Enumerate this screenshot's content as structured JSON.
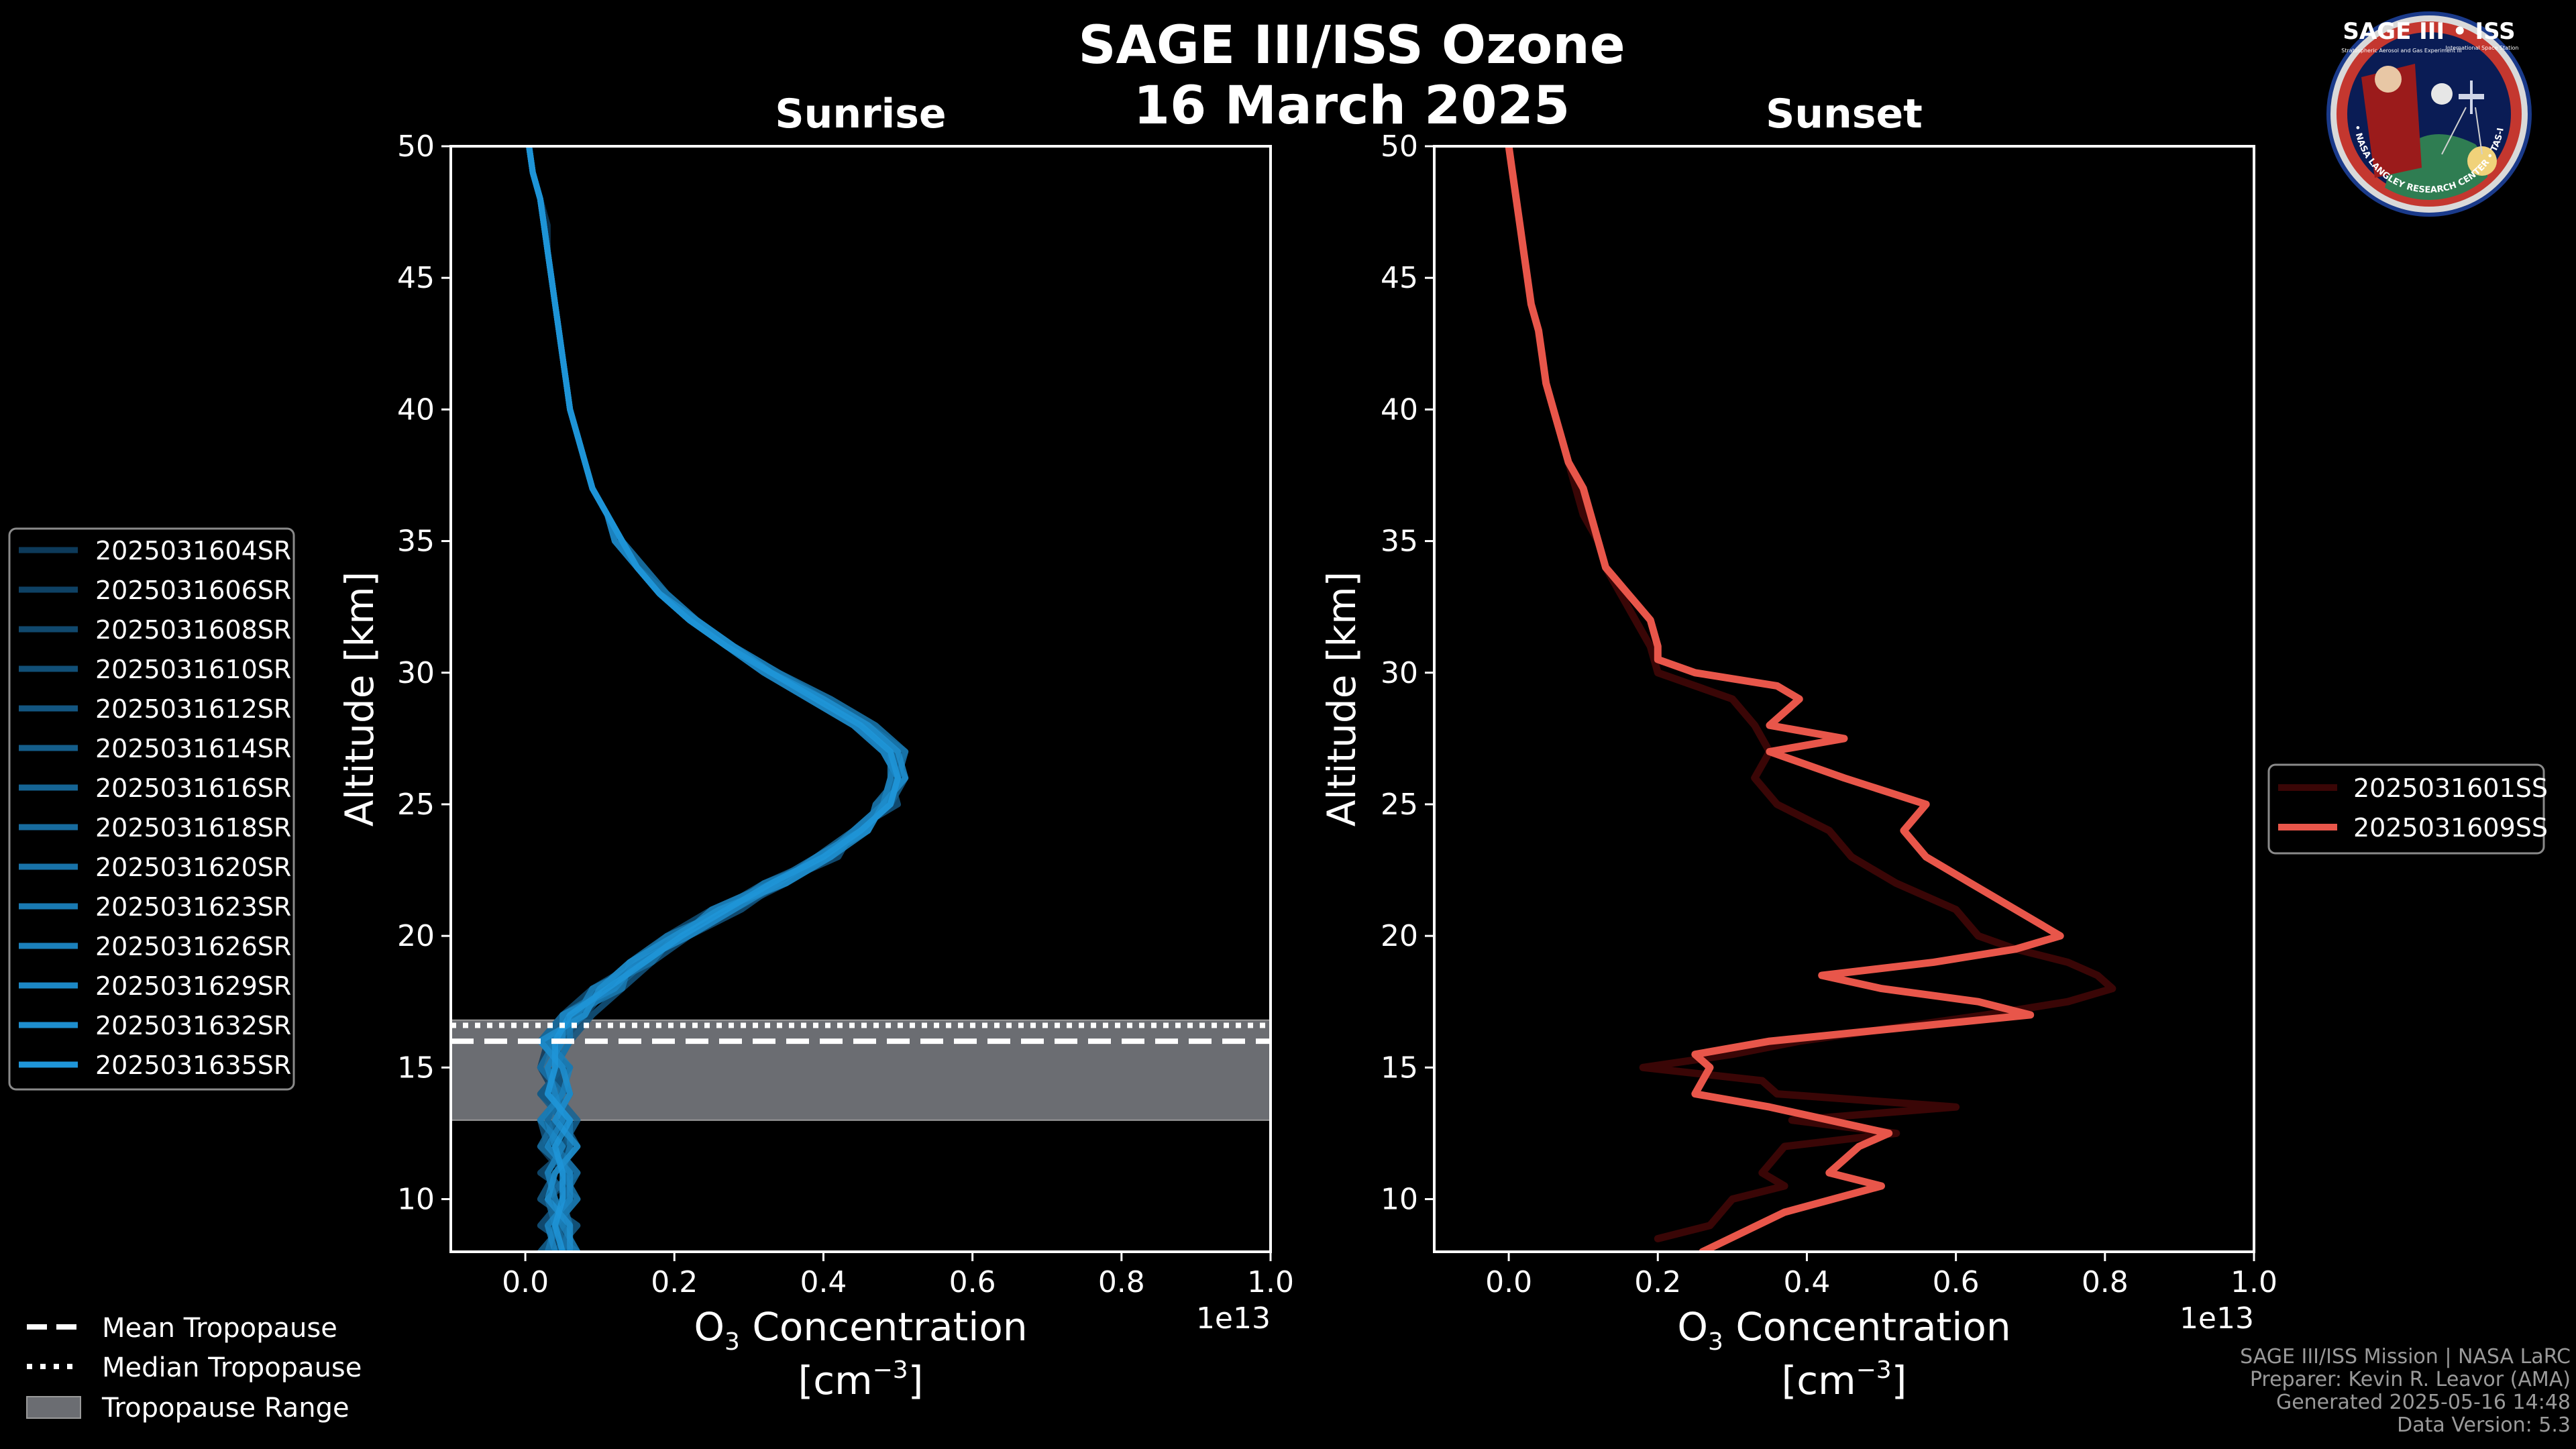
{
  "figure": {
    "title_line1": "SAGE III/ISS Ozone",
    "title_line2": "16 March 2025",
    "logo": {
      "top_text": "SAGE III • ISS",
      "sub_left": "Stratospheric Aerosol and Gas Experiment III",
      "sub_right": "International Space Station",
      "ring_text": "BALL • NASA LANGLEY RESEARCH CENTER • TAS-I • ESA"
    }
  },
  "footer": {
    "line1": "SAGE III/ISS Mission | NASA LaRC",
    "line2": "Preparer: Kevin R. Leavor (AMA)",
    "line3": "Generated 2025-05-16 14:48",
    "line4": "Data Version: 5.3"
  },
  "tropopause_legend": {
    "mean": "Mean Tropopause",
    "median": "Median Tropopause",
    "range": "Tropopause Range"
  },
  "colors": {
    "background": "#000000",
    "sunrise_dark": "#0d3a5a",
    "sunrise_light": "#1f95d8",
    "sunset_dark": "#3a0606",
    "sunset_light": "#e8564a",
    "tropopause_fill": "#6b6d72"
  },
  "chart_data": [
    {
      "type": "line",
      "title": "Sunrise",
      "xlabel_main": "O",
      "xlabel_sub": "3",
      "xlabel_rest": " Concentration",
      "xunit_prefix": "[cm",
      "xunit_exp": "−3",
      "xunit_suffix": "]",
      "ylabel": "Altitude [km]",
      "offset_label": "1e13",
      "xlim": [
        -0.1,
        1.0
      ],
      "ylim": [
        8,
        50
      ],
      "xticks": [
        0.0,
        0.2,
        0.4,
        0.6,
        0.8,
        1.0
      ],
      "xtick_labels": [
        "0.0",
        "0.2",
        "0.4",
        "0.6",
        "0.8",
        "1.0"
      ],
      "yticks": [
        10,
        15,
        20,
        25,
        30,
        35,
        40,
        45,
        50
      ],
      "ytick_labels": [
        "10",
        "15",
        "20",
        "25",
        "30",
        "35",
        "40",
        "45",
        "50"
      ],
      "tropopause": {
        "mean": 16.0,
        "median": 16.6,
        "range": [
          13.0,
          16.8
        ]
      },
      "altitudes": [
        8,
        9,
        10,
        11,
        12,
        13,
        14,
        15,
        16,
        17,
        18,
        19,
        20,
        21,
        22,
        23,
        24,
        25,
        26,
        27,
        28,
        29,
        30,
        31,
        32,
        33,
        34,
        35,
        36,
        37,
        38,
        39,
        40,
        41,
        42,
        43,
        44,
        45,
        46,
        47,
        48,
        49,
        50
      ],
      "series": [
        {
          "name": "2025031604SR",
          "values": [
            0.04,
            0.05,
            0.04,
            0.03,
            0.05,
            0.03,
            0.04,
            0.02,
            0.03,
            0.07,
            0.1,
            0.15,
            0.2,
            0.27,
            0.34,
            0.4,
            0.45,
            0.48,
            0.5,
            0.49,
            0.45,
            0.39,
            0.33,
            0.27,
            0.22,
            0.18,
            0.15,
            0.13,
            0.11,
            0.09,
            0.08,
            0.07,
            0.06,
            0.055,
            0.05,
            0.045,
            0.04,
            0.035,
            0.03,
            0.03,
            0.02,
            0.01,
            0.005
          ]
        },
        {
          "name": "2025031606SR",
          "values": [
            0.06,
            0.03,
            0.06,
            0.05,
            0.02,
            0.06,
            0.02,
            0.05,
            0.04,
            0.06,
            0.12,
            0.14,
            0.22,
            0.26,
            0.33,
            0.41,
            0.44,
            0.49,
            0.49,
            0.5,
            0.46,
            0.4,
            0.34,
            0.28,
            0.23,
            0.18,
            0.15,
            0.13,
            0.11,
            0.09,
            0.08,
            0.07,
            0.06,
            0.055,
            0.05,
            0.045,
            0.04,
            0.035,
            0.03,
            0.025,
            0.02,
            0.01,
            0.005
          ]
        },
        {
          "name": "2025031608SR",
          "values": [
            0.03,
            0.06,
            0.03,
            0.07,
            0.04,
            0.04,
            0.06,
            0.03,
            0.05,
            0.08,
            0.11,
            0.16,
            0.21,
            0.28,
            0.35,
            0.4,
            0.46,
            0.47,
            0.51,
            0.48,
            0.44,
            0.38,
            0.32,
            0.27,
            0.22,
            0.18,
            0.15,
            0.12,
            0.11,
            0.09,
            0.08,
            0.07,
            0.06,
            0.055,
            0.05,
            0.045,
            0.04,
            0.035,
            0.03,
            0.025,
            0.02,
            0.01,
            0.005
          ]
        },
        {
          "name": "2025031610SR",
          "values": [
            0.05,
            0.04,
            0.07,
            0.02,
            0.06,
            0.05,
            0.03,
            0.06,
            0.02,
            0.05,
            0.09,
            0.15,
            0.19,
            0.25,
            0.33,
            0.39,
            0.45,
            0.49,
            0.5,
            0.49,
            0.45,
            0.39,
            0.33,
            0.27,
            0.22,
            0.18,
            0.15,
            0.13,
            0.11,
            0.09,
            0.08,
            0.07,
            0.06,
            0.055,
            0.05,
            0.045,
            0.04,
            0.035,
            0.03,
            0.025,
            0.02,
            0.01,
            0.005
          ]
        },
        {
          "name": "2025031612SR",
          "values": [
            0.07,
            0.02,
            0.05,
            0.06,
            0.03,
            0.02,
            0.05,
            0.04,
            0.06,
            0.09,
            0.13,
            0.17,
            0.22,
            0.29,
            0.34,
            0.42,
            0.44,
            0.5,
            0.49,
            0.51,
            0.46,
            0.4,
            0.33,
            0.28,
            0.23,
            0.19,
            0.15,
            0.13,
            0.11,
            0.09,
            0.08,
            0.07,
            0.06,
            0.055,
            0.05,
            0.045,
            0.04,
            0.035,
            0.03,
            0.025,
            0.02,
            0.01,
            0.005
          ]
        },
        {
          "name": "2025031614SR",
          "values": [
            0.04,
            0.07,
            0.02,
            0.04,
            0.07,
            0.05,
            0.02,
            0.05,
            0.03,
            0.06,
            0.1,
            0.14,
            0.2,
            0.26,
            0.32,
            0.4,
            0.46,
            0.48,
            0.5,
            0.48,
            0.45,
            0.39,
            0.33,
            0.27,
            0.22,
            0.18,
            0.15,
            0.13,
            0.11,
            0.09,
            0.08,
            0.07,
            0.06,
            0.055,
            0.05,
            0.045,
            0.04,
            0.035,
            0.03,
            0.025,
            0.02,
            0.01,
            0.005
          ]
        },
        {
          "name": "2025031616SR",
          "values": [
            0.02,
            0.05,
            0.06,
            0.03,
            0.05,
            0.07,
            0.04,
            0.03,
            0.05,
            0.07,
            0.12,
            0.16,
            0.21,
            0.27,
            0.35,
            0.41,
            0.45,
            0.49,
            0.51,
            0.49,
            0.44,
            0.38,
            0.32,
            0.27,
            0.22,
            0.18,
            0.15,
            0.12,
            0.11,
            0.09,
            0.08,
            0.07,
            0.06,
            0.055,
            0.05,
            0.045,
            0.04,
            0.035,
            0.03,
            0.025,
            0.02,
            0.01,
            0.005
          ]
        },
        {
          "name": "2025031618SR",
          "values": [
            0.06,
            0.04,
            0.03,
            0.06,
            0.02,
            0.04,
            0.06,
            0.05,
            0.02,
            0.05,
            0.11,
            0.15,
            0.22,
            0.28,
            0.33,
            0.39,
            0.44,
            0.48,
            0.49,
            0.5,
            0.46,
            0.4,
            0.34,
            0.28,
            0.23,
            0.18,
            0.15,
            0.13,
            0.11,
            0.09,
            0.08,
            0.07,
            0.06,
            0.055,
            0.05,
            0.045,
            0.04,
            0.035,
            0.03,
            0.025,
            0.02,
            0.01,
            0.005
          ]
        },
        {
          "name": "2025031620SR",
          "values": [
            0.05,
            0.06,
            0.05,
            0.07,
            0.04,
            0.03,
            0.05,
            0.02,
            0.04,
            0.08,
            0.1,
            0.17,
            0.2,
            0.26,
            0.34,
            0.4,
            0.46,
            0.47,
            0.5,
            0.49,
            0.45,
            0.39,
            0.33,
            0.27,
            0.22,
            0.18,
            0.15,
            0.13,
            0.11,
            0.09,
            0.08,
            0.07,
            0.06,
            0.055,
            0.05,
            0.045,
            0.04,
            0.035,
            0.03,
            0.025,
            0.02,
            0.01,
            0.005
          ]
        },
        {
          "name": "2025031623SR",
          "values": [
            0.03,
            0.04,
            0.07,
            0.05,
            0.06,
            0.06,
            0.03,
            0.04,
            0.06,
            0.06,
            0.13,
            0.14,
            0.19,
            0.27,
            0.32,
            0.41,
            0.45,
            0.49,
            0.5,
            0.51,
            0.47,
            0.41,
            0.34,
            0.28,
            0.23,
            0.19,
            0.16,
            0.13,
            0.11,
            0.09,
            0.08,
            0.07,
            0.06,
            0.055,
            0.05,
            0.045,
            0.04,
            0.035,
            0.03,
            0.025,
            0.02,
            0.01,
            0.005
          ]
        },
        {
          "name": "2025031626SR",
          "values": [
            0.07,
            0.05,
            0.04,
            0.03,
            0.05,
            0.02,
            0.05,
            0.06,
            0.03,
            0.07,
            0.09,
            0.16,
            0.21,
            0.25,
            0.33,
            0.4,
            0.44,
            0.48,
            0.49,
            0.49,
            0.45,
            0.39,
            0.33,
            0.27,
            0.22,
            0.18,
            0.15,
            0.13,
            0.11,
            0.09,
            0.08,
            0.07,
            0.06,
            0.055,
            0.05,
            0.045,
            0.04,
            0.035,
            0.03,
            0.025,
            0.02,
            0.01,
            0.005
          ]
        },
        {
          "name": "2025031629SR",
          "values": [
            0.04,
            0.03,
            0.06,
            0.06,
            0.03,
            0.05,
            0.04,
            0.03,
            0.05,
            0.05,
            0.12,
            0.15,
            0.22,
            0.28,
            0.34,
            0.39,
            0.45,
            0.49,
            0.5,
            0.48,
            0.44,
            0.38,
            0.32,
            0.27,
            0.22,
            0.18,
            0.15,
            0.12,
            0.11,
            0.09,
            0.08,
            0.07,
            0.06,
            0.055,
            0.05,
            0.045,
            0.04,
            0.035,
            0.03,
            0.025,
            0.02,
            0.01,
            0.005
          ]
        },
        {
          "name": "2025031632SR",
          "values": [
            0.06,
            0.06,
            0.03,
            0.04,
            0.07,
            0.04,
            0.06,
            0.05,
            0.02,
            0.08,
            0.1,
            0.14,
            0.2,
            0.26,
            0.35,
            0.41,
            0.46,
            0.48,
            0.51,
            0.5,
            0.46,
            0.4,
            0.33,
            0.28,
            0.23,
            0.18,
            0.15,
            0.13,
            0.11,
            0.09,
            0.08,
            0.07,
            0.06,
            0.055,
            0.05,
            0.045,
            0.04,
            0.035,
            0.03,
            0.025,
            0.02,
            0.01,
            0.005
          ]
        },
        {
          "name": "2025031635SR",
          "values": [
            0.05,
            0.04,
            0.05,
            0.05,
            0.04,
            0.06,
            0.03,
            0.04,
            0.04,
            0.06,
            0.11,
            0.16,
            0.21,
            0.27,
            0.33,
            0.4,
            0.45,
            0.49,
            0.5,
            0.49,
            0.45,
            0.39,
            0.33,
            0.27,
            0.22,
            0.18,
            0.15,
            0.13,
            0.11,
            0.09,
            0.08,
            0.07,
            0.06,
            0.055,
            0.05,
            0.045,
            0.04,
            0.035,
            0.03,
            0.025,
            0.02,
            0.01,
            0.005
          ]
        }
      ]
    },
    {
      "type": "line",
      "title": "Sunset",
      "xlabel_main": "O",
      "xlabel_sub": "3",
      "xlabel_rest": " Concentration",
      "xunit_prefix": "[cm",
      "xunit_exp": "−3",
      "xunit_suffix": "]",
      "ylabel": "Altitude [km]",
      "offset_label": "1e13",
      "xlim": [
        -0.1,
        1.0
      ],
      "ylim": [
        8,
        50
      ],
      "xticks": [
        0.0,
        0.2,
        0.4,
        0.6,
        0.8,
        1.0
      ],
      "xtick_labels": [
        "0.0",
        "0.2",
        "0.4",
        "0.6",
        "0.8",
        "1.0"
      ],
      "yticks": [
        10,
        15,
        20,
        25,
        30,
        35,
        40,
        45,
        50
      ],
      "ytick_labels": [
        "10",
        "15",
        "20",
        "25",
        "30",
        "35",
        "40",
        "45",
        "50"
      ],
      "series": [
        {
          "name": "2025031601SS",
          "altitudes": [
            8.5,
            9,
            10,
            10.5,
            11,
            12,
            12.5,
            13,
            13.5,
            14,
            14.5,
            15,
            15.5,
            16,
            17,
            17.5,
            18,
            18.5,
            19,
            19.5,
            20,
            21,
            22,
            23,
            24,
            25,
            26,
            27,
            28,
            29,
            30,
            31,
            32,
            33,
            34,
            35,
            36,
            37,
            38,
            39,
            40,
            41,
            42,
            43,
            44,
            45,
            46,
            47,
            48,
            49,
            50
          ],
          "values": [
            0.2,
            0.27,
            0.3,
            0.37,
            0.34,
            0.37,
            0.52,
            0.38,
            0.6,
            0.36,
            0.34,
            0.18,
            0.3,
            0.39,
            0.64,
            0.75,
            0.81,
            0.79,
            0.75,
            0.68,
            0.63,
            0.6,
            0.52,
            0.46,
            0.43,
            0.36,
            0.33,
            0.35,
            0.33,
            0.3,
            0.2,
            0.19,
            0.17,
            0.15,
            0.13,
            0.12,
            0.1,
            0.09,
            0.08,
            0.07,
            0.06,
            0.05,
            0.045,
            0.04,
            0.03,
            0.025,
            0.02,
            0.015,
            0.01,
            0.005,
            0.0
          ]
        },
        {
          "name": "2025031609SS",
          "altitudes": [
            8,
            9.5,
            10.5,
            11,
            12,
            12.5,
            13,
            13.5,
            14,
            15,
            15.5,
            16,
            17,
            17.5,
            18,
            18.5,
            19,
            19.5,
            20,
            21,
            22,
            23,
            24,
            25,
            26,
            27,
            27.5,
            28,
            29,
            29.5,
            30,
            30.5,
            31,
            32,
            33,
            34,
            35,
            36,
            37,
            38,
            39,
            40,
            41,
            42,
            43,
            44,
            45,
            46,
            47,
            48,
            49,
            50
          ],
          "values": [
            0.26,
            0.37,
            0.5,
            0.43,
            0.47,
            0.51,
            0.43,
            0.35,
            0.25,
            0.27,
            0.25,
            0.35,
            0.7,
            0.63,
            0.5,
            0.42,
            0.57,
            0.68,
            0.74,
            0.68,
            0.62,
            0.56,
            0.53,
            0.56,
            0.45,
            0.35,
            0.45,
            0.35,
            0.39,
            0.36,
            0.25,
            0.2,
            0.2,
            0.19,
            0.16,
            0.13,
            0.12,
            0.11,
            0.1,
            0.08,
            0.07,
            0.06,
            0.05,
            0.045,
            0.04,
            0.03,
            0.025,
            0.02,
            0.015,
            0.01,
            0.005,
            0.0
          ]
        }
      ]
    }
  ]
}
